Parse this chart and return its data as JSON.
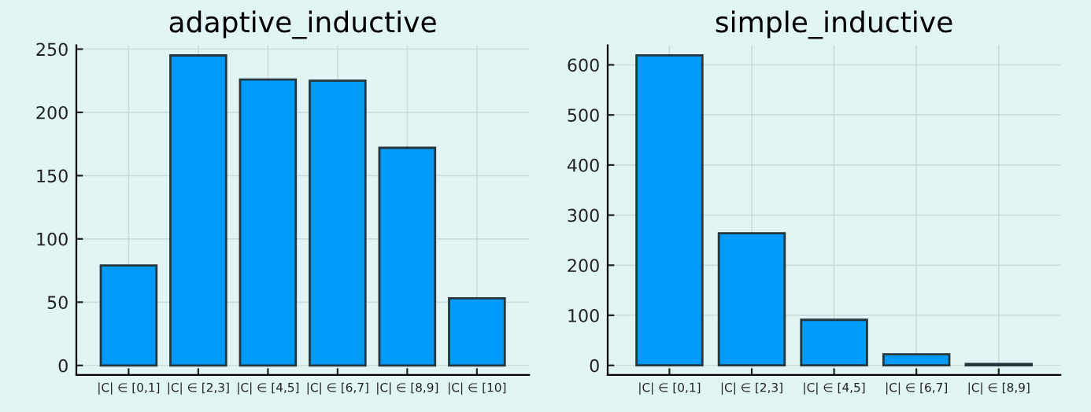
{
  "chart_data": [
    {
      "type": "bar",
      "title": "adaptive_inductive",
      "categories": [
        "|C| ∈ [0,1]",
        "|C| ∈ [2,3]",
        "|C| ∈ [4,5]",
        "|C| ∈ [6,7]",
        "|C| ∈ [8,9]",
        "|C| ∈ [10]"
      ],
      "values": [
        79,
        245,
        226,
        225,
        172,
        53
      ],
      "color": "#009af9",
      "ylim": [
        -7.5,
        253
      ],
      "yticks": [
        0,
        50,
        100,
        150,
        200,
        250
      ],
      "grid": true
    },
    {
      "type": "bar",
      "title": "simple_inductive",
      "categories": [
        "|C| ∈ [0,1]",
        "|C| ∈ [2,3]",
        "|C| ∈ [4,5]",
        "|C| ∈ [6,7]",
        "|C| ∈ [8,9]"
      ],
      "values": [
        619,
        264,
        91,
        22,
        3
      ],
      "color": "#009af9",
      "ylim": [
        -19,
        639
      ],
      "yticks": [
        0,
        100,
        200,
        300,
        400,
        500,
        600
      ],
      "grid": true
    }
  ]
}
